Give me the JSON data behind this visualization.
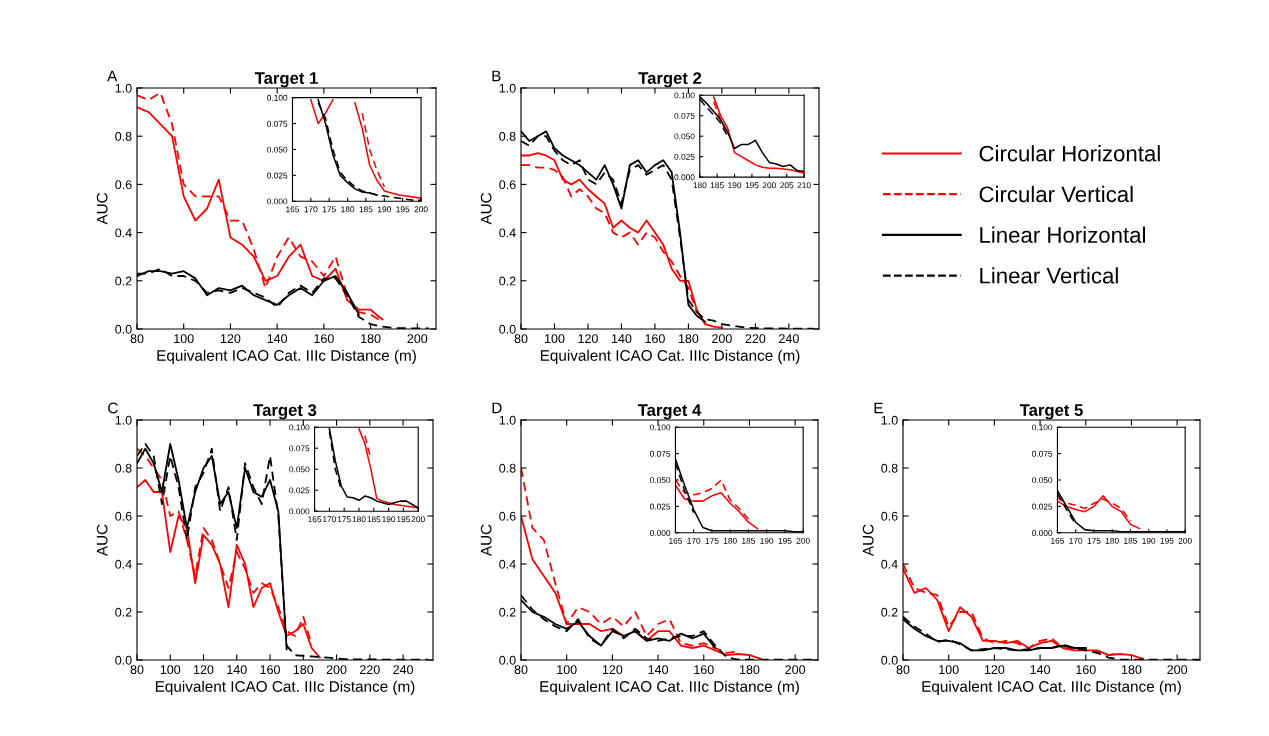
{
  "chart_data": [
    {
      "type": "line",
      "title": "Target 1",
      "annotations": [
        "A"
      ],
      "xlabel": "Equivalent ICAO Cat. IIIc Distance (m)",
      "ylabel": "AUC",
      "legend": "right",
      "xlim": [
        80,
        208
      ],
      "ylim": [
        0,
        1
      ],
      "xticks": [
        80,
        100,
        120,
        140,
        160,
        180,
        200
      ],
      "yticks": [
        {
          "value": 0,
          "label": "0.0"
        },
        {
          "value": 0.2,
          "label": "0.2"
        },
        {
          "value": 0.4,
          "label": "0.4"
        },
        {
          "value": 0.6,
          "label": "0.6"
        },
        {
          "value": 0.8,
          "label": "0.8"
        },
        {
          "value": 1,
          "label": "1.0"
        }
      ],
      "x": [
        80,
        85,
        90,
        95,
        100,
        105,
        110,
        115,
        120,
        125,
        130,
        135,
        140,
        145,
        150,
        155,
        160,
        165,
        170,
        175,
        180,
        185,
        190,
        195,
        200,
        205
      ],
      "series": [
        {
          "name": "Circular Horizontal",
          "color": "#ff0000",
          "line_style": "solid",
          "values": [
            0.92,
            0.9,
            0.85,
            0.8,
            0.55,
            0.45,
            0.5,
            0.62,
            0.38,
            0.35,
            0.3,
            0.2,
            0.22,
            0.3,
            0.35,
            0.22,
            0.2,
            0.25,
            0.12,
            0.08,
            0.08,
            0.04,
            null,
            null,
            null,
            null
          ]
        },
        {
          "name": "Circular Vertical",
          "color": "#ff0000",
          "line_style": "dashed",
          "values": [
            0.97,
            0.95,
            0.98,
            0.85,
            0.6,
            0.55,
            0.55,
            0.55,
            0.45,
            0.45,
            0.33,
            0.17,
            0.3,
            0.38,
            0.3,
            0.28,
            0.22,
            0.3,
            0.14,
            0.07,
            0.06,
            0.03,
            null,
            null,
            null,
            null
          ]
        },
        {
          "name": "Linear Horizontal",
          "color": "#000000",
          "line_style": "solid",
          "values": [
            0.22,
            0.24,
            0.24,
            0.23,
            0.24,
            0.21,
            0.14,
            0.17,
            0.16,
            0.18,
            0.14,
            0.12,
            0.1,
            0.14,
            0.17,
            0.14,
            0.2,
            0.22,
            0.15,
            0.06,
            null,
            null,
            null,
            null,
            null,
            null
          ]
        },
        {
          "name": "Linear Vertical",
          "color": "#000000",
          "line_style": "dashed",
          "values": [
            0.23,
            0.23,
            0.25,
            0.22,
            0.22,
            0.2,
            0.15,
            0.16,
            0.15,
            0.17,
            0.15,
            0.13,
            0.09,
            0.15,
            0.18,
            0.15,
            0.21,
            0.21,
            0.14,
            0.05,
            0.02,
            0.01,
            0.004,
            0.003,
            0.002,
            0.002
          ]
        }
      ]
    },
    {
      "type": "line",
      "xlim": [
        165,
        200
      ],
      "ylim": [
        0,
        0.1
      ],
      "xticks": [
        165,
        170,
        175,
        180,
        185,
        190,
        195,
        200
      ],
      "yticks": [
        {
          "value": 0,
          "label": "0.000"
        },
        {
          "value": 0.025,
          "label": "0.025"
        },
        {
          "value": 0.05,
          "label": "0.050"
        },
        {
          "value": 0.075,
          "label": "0.075"
        },
        {
          "value": 0.1,
          "label": "0.100"
        }
      ],
      "x": [
        170,
        172,
        174,
        176,
        178,
        180,
        182,
        184,
        186,
        188,
        190,
        192,
        194,
        196,
        198,
        200
      ],
      "series": [
        {
          "color": "#ff0000",
          "line_style": "solid",
          "values": [
            0.098,
            0.075,
            0.085,
            0.098,
            null,
            null,
            0.095,
            0.07,
            0.035,
            0.02,
            0.01,
            0.008,
            0.006,
            0.005,
            0.004,
            0.003
          ]
        },
        {
          "color": "#ff0000",
          "line_style": "dashed",
          "values": [
            null,
            null,
            null,
            null,
            null,
            null,
            null,
            0.085,
            0.05,
            0.03,
            0.014,
            null,
            null,
            null,
            null,
            null
          ]
        },
        {
          "color": "#000000",
          "line_style": "solid",
          "values": [
            null,
            0.098,
            0.075,
            0.045,
            0.025,
            0.018,
            0.012,
            0.009,
            0.008,
            0.006,
            null,
            null,
            null,
            null,
            null,
            null
          ]
        },
        {
          "color": "#000000",
          "line_style": "dashed",
          "values": [
            null,
            0.095,
            0.08,
            0.05,
            0.028,
            0.02,
            0.014,
            0.01,
            0.008,
            0.006,
            0.005,
            0.004,
            0.003,
            0.002,
            0.001,
            0.001
          ]
        }
      ]
    },
    {
      "type": "line",
      "title": "Target 2",
      "annotations": [
        "B"
      ],
      "xlabel": "Equivalent ICAO Cat. IIIc Distance (m)",
      "ylabel": "AUC",
      "xlim": [
        80,
        258
      ],
      "ylim": [
        0,
        1
      ],
      "xticks": [
        80,
        100,
        120,
        140,
        160,
        180,
        200,
        220,
        240
      ],
      "yticks": [
        {
          "value": 0,
          "label": "0.0"
        },
        {
          "value": 0.2,
          "label": "0.2"
        },
        {
          "value": 0.4,
          "label": "0.4"
        },
        {
          "value": 0.6,
          "label": "0.6"
        },
        {
          "value": 0.8,
          "label": "0.8"
        },
        {
          "value": 1,
          "label": "1.0"
        }
      ],
      "x": [
        80,
        85,
        90,
        95,
        100,
        105,
        110,
        115,
        120,
        125,
        130,
        135,
        140,
        145,
        150,
        155,
        160,
        165,
        170,
        175,
        180,
        185,
        190,
        195,
        200,
        205,
        210,
        215,
        220,
        225,
        230,
        235,
        240,
        245,
        250,
        255
      ],
      "series": [
        {
          "color": "#ff0000",
          "line_style": "solid",
          "values": [
            0.72,
            0.72,
            0.73,
            0.72,
            0.7,
            0.62,
            0.6,
            0.62,
            0.58,
            0.55,
            0.52,
            0.42,
            0.45,
            0.42,
            0.4,
            0.45,
            0.4,
            0.35,
            0.25,
            0.2,
            0.2,
            0.08,
            0.02,
            0.01,
            0.005,
            null,
            null,
            null,
            null,
            null,
            null,
            null,
            null,
            null,
            null,
            null
          ]
        },
        {
          "color": "#ff0000",
          "line_style": "dashed",
          "values": [
            0.68,
            0.68,
            0.67,
            0.67,
            0.66,
            0.63,
            0.55,
            0.58,
            0.55,
            0.5,
            0.48,
            0.4,
            0.38,
            0.4,
            0.35,
            0.4,
            0.38,
            0.32,
            0.28,
            0.22,
            0.17,
            0.07,
            null,
            null,
            null,
            null,
            null,
            null,
            null,
            null,
            null,
            null,
            null,
            null,
            null,
            null
          ]
        },
        {
          "color": "#000000",
          "line_style": "solid",
          "values": [
            0.82,
            0.78,
            0.8,
            0.82,
            0.75,
            0.72,
            0.7,
            0.68,
            0.65,
            0.62,
            0.68,
            0.6,
            0.5,
            0.68,
            0.7,
            0.65,
            0.68,
            0.7,
            0.65,
            0.4,
            0.1,
            0.055,
            0.03,
            null,
            null,
            null,
            null,
            null,
            null,
            null,
            null,
            null,
            null,
            null,
            null,
            null
          ]
        },
        {
          "color": "#000000",
          "line_style": "dashed",
          "values": [
            0.78,
            0.76,
            0.8,
            0.8,
            0.74,
            0.7,
            0.68,
            0.7,
            0.62,
            0.6,
            0.65,
            0.62,
            0.52,
            0.66,
            0.68,
            0.64,
            0.66,
            0.68,
            0.62,
            0.38,
            0.12,
            0.07,
            0.04,
            0.035,
            0.02,
            0.015,
            0.01,
            0.005,
            0.004,
            0.003,
            0.002,
            0.002,
            0.001,
            0.001,
            0.001,
            0.001
          ]
        }
      ]
    },
    {
      "type": "line",
      "xlim": [
        180,
        210
      ],
      "ylim": [
        0,
        0.1
      ],
      "xticks": [
        180,
        185,
        190,
        195,
        200,
        205,
        210
      ],
      "yticks": [
        {
          "value": 0,
          "label": "0.000"
        },
        {
          "value": 0.025,
          "label": "0.025"
        },
        {
          "value": 0.05,
          "label": "0.050"
        },
        {
          "value": 0.075,
          "label": "0.075"
        },
        {
          "value": 0.1,
          "label": "0.100"
        }
      ],
      "x": [
        180,
        182,
        184,
        186,
        188,
        190,
        192,
        194,
        196,
        198,
        200,
        202,
        204,
        206,
        208,
        210
      ],
      "series": [
        {
          "color": "#ff0000",
          "line_style": "solid",
          "values": [
            null,
            null,
            0.098,
            0.075,
            0.06,
            0.03,
            0.025,
            0.02,
            0.015,
            0.012,
            0.011,
            0.011,
            0.01,
            0.009,
            0.007,
            0.005
          ]
        },
        {
          "color": "#ff0000",
          "line_style": "dashed",
          "values": [
            null,
            null,
            0.092,
            0.07,
            0.052,
            null,
            null,
            null,
            null,
            null,
            null,
            null,
            null,
            null,
            null,
            null
          ]
        },
        {
          "color": "#000000",
          "line_style": "solid",
          "values": [
            0.098,
            0.09,
            0.08,
            0.07,
            0.055,
            0.035,
            0.04,
            0.04,
            0.045,
            0.03,
            0.018,
            0.016,
            0.013,
            0.015,
            0.008,
            0.007
          ]
        },
        {
          "color": "#000000",
          "line_style": "dashed",
          "values": [
            0.095,
            0.085,
            0.076,
            0.066,
            0.05,
            null,
            null,
            null,
            null,
            null,
            null,
            null,
            null,
            null,
            null,
            null
          ]
        }
      ]
    },
    {
      "type": "line",
      "title": "Target 3",
      "annotations": [
        "C"
      ],
      "xlabel": "Equivalent ICAO Cat. IIIc Distance (m)",
      "ylabel": "AUC",
      "xlim": [
        80,
        258
      ],
      "ylim": [
        0,
        1
      ],
      "xticks": [
        80,
        100,
        120,
        140,
        160,
        180,
        200,
        220,
        240
      ],
      "yticks": [
        {
          "value": 0,
          "label": "0.0"
        },
        {
          "value": 0.2,
          "label": "0.2"
        },
        {
          "value": 0.4,
          "label": "0.4"
        },
        {
          "value": 0.6,
          "label": "0.6"
        },
        {
          "value": 0.8,
          "label": "0.8"
        },
        {
          "value": 1,
          "label": "1.0"
        }
      ],
      "x": [
        80,
        85,
        90,
        95,
        100,
        105,
        110,
        115,
        120,
        125,
        130,
        135,
        140,
        145,
        150,
        155,
        160,
        165,
        170,
        175,
        180,
        185,
        190,
        195,
        200,
        205,
        210,
        215,
        220,
        225,
        230,
        235,
        240,
        245,
        250,
        255
      ],
      "series": [
        {
          "color": "#ff0000",
          "line_style": "solid",
          "values": [
            0.72,
            0.75,
            0.7,
            0.7,
            0.45,
            0.6,
            0.55,
            0.32,
            0.52,
            0.48,
            0.4,
            0.22,
            0.48,
            0.4,
            0.22,
            0.3,
            0.32,
            0.2,
            0.1,
            0.12,
            0.15,
            0.05,
            0.01,
            null,
            null,
            null,
            null,
            null,
            null,
            null,
            null,
            null,
            null,
            null,
            null,
            null
          ]
        },
        {
          "color": "#ff0000",
          "line_style": "dashed",
          "values": [
            0.88,
            0.85,
            0.8,
            0.75,
            0.6,
            0.62,
            0.5,
            0.35,
            0.55,
            0.5,
            0.4,
            0.3,
            0.45,
            0.38,
            0.28,
            0.32,
            0.3,
            0.22,
            0.12,
            0.1,
            0.18,
            0.065,
            null,
            null,
            null,
            null,
            null,
            null,
            null,
            null,
            null,
            null,
            null,
            null,
            null,
            null
          ]
        },
        {
          "color": "#000000",
          "line_style": "solid",
          "values": [
            0.82,
            0.88,
            0.82,
            0.7,
            0.9,
            0.75,
            0.55,
            0.7,
            0.8,
            0.85,
            0.65,
            0.7,
            0.55,
            0.8,
            0.7,
            0.68,
            0.75,
            0.62,
            0.045,
            null,
            null,
            null,
            null,
            null,
            null,
            null,
            null,
            null,
            null,
            null,
            null,
            null,
            null,
            null,
            null,
            null
          ]
        },
        {
          "color": "#000000",
          "line_style": "dashed",
          "values": [
            0.85,
            0.9,
            0.85,
            0.65,
            0.85,
            0.72,
            0.5,
            0.72,
            0.78,
            0.88,
            0.62,
            0.72,
            0.5,
            0.82,
            0.72,
            0.65,
            0.85,
            0.6,
            0.06,
            0.02,
            0.017,
            0.015,
            0.012,
            0.01,
            0.006,
            0.004,
            0.003,
            0.002,
            0.002,
            0.002,
            0.001,
            0.001,
            0.001,
            0.001,
            0.001,
            0.001
          ]
        }
      ]
    },
    {
      "type": "line",
      "xlim": [
        165,
        200
      ],
      "ylim": [
        0,
        0.1
      ],
      "xticks": [
        165,
        170,
        175,
        180,
        185,
        190,
        195,
        200
      ],
      "yticks": [
        {
          "value": 0,
          "label": "0.000"
        },
        {
          "value": 0.025,
          "label": "0.025"
        },
        {
          "value": 0.05,
          "label": "0.050"
        },
        {
          "value": 0.075,
          "label": "0.075"
        },
        {
          "value": 0.1,
          "label": "0.100"
        }
      ],
      "x": [
        170,
        172,
        174,
        176,
        178,
        180,
        182,
        184,
        186,
        188,
        190,
        192,
        194,
        196,
        198,
        200
      ],
      "series": [
        {
          "color": "#ff0000",
          "line_style": "solid",
          "values": [
            null,
            null,
            null,
            null,
            null,
            0.098,
            0.08,
            0.05,
            0.015,
            0.012,
            0.01,
            0.008,
            0.007,
            0.006,
            0.005,
            0.004
          ]
        },
        {
          "color": "#ff0000",
          "line_style": "dashed",
          "values": [
            null,
            null,
            null,
            null,
            null,
            null,
            0.09,
            0.062,
            null,
            null,
            null,
            null,
            null,
            null,
            null,
            null
          ]
        },
        {
          "color": "#000000",
          "line_style": "solid",
          "values": [
            0.098,
            0.06,
            0.03,
            0.017,
            0.016,
            0.013,
            0.018,
            0.016,
            0.012,
            0.01,
            0.008,
            0.01,
            0.012,
            0.012,
            0.008,
            0.004
          ]
        },
        {
          "color": "#000000",
          "line_style": "dashed",
          "values": [
            0.095,
            0.05,
            0.026,
            null,
            null,
            null,
            null,
            null,
            null,
            null,
            null,
            null,
            null,
            null,
            null,
            null
          ]
        }
      ]
    },
    {
      "type": "line",
      "title": "Target 4",
      "annotations": [
        "D"
      ],
      "xlabel": "Equivalent ICAO Cat. IIIc Distance (m)",
      "ylabel": "AUC",
      "xlim": [
        80,
        210
      ],
      "ylim": [
        0,
        1
      ],
      "xticks": [
        80,
        100,
        120,
        140,
        160,
        180,
        200
      ],
      "yticks": [
        {
          "value": 0,
          "label": "0.0"
        },
        {
          "value": 0.2,
          "label": "0.2"
        },
        {
          "value": 0.4,
          "label": "0.4"
        },
        {
          "value": 0.6,
          "label": "0.6"
        },
        {
          "value": 0.8,
          "label": "0.8"
        },
        {
          "value": 1,
          "label": "1.0"
        }
      ],
      "x": [
        80,
        85,
        90,
        95,
        100,
        105,
        110,
        115,
        120,
        125,
        130,
        135,
        140,
        145,
        150,
        155,
        160,
        165,
        170,
        175,
        180,
        185,
        190,
        195,
        200,
        205,
        210
      ],
      "series": [
        {
          "color": "#ff0000",
          "line_style": "solid",
          "values": [
            0.6,
            0.42,
            0.35,
            0.28,
            0.15,
            0.15,
            0.15,
            0.12,
            0.13,
            0.1,
            0.12,
            0.08,
            0.12,
            0.12,
            0.06,
            0.05,
            0.06,
            0.04,
            0.02,
            0.025,
            0.02,
            0.005,
            null,
            null,
            null,
            null,
            null
          ]
        },
        {
          "color": "#ff0000",
          "line_style": "dashed",
          "values": [
            0.8,
            0.55,
            0.5,
            0.32,
            0.15,
            0.22,
            0.2,
            0.15,
            0.18,
            0.14,
            0.2,
            0.1,
            0.15,
            0.17,
            0.07,
            0.06,
            0.07,
            0.05,
            0.03,
            0.035,
            null,
            null,
            null,
            null,
            null,
            null,
            null
          ]
        },
        {
          "color": "#000000",
          "line_style": "solid",
          "values": [
            0.25,
            0.2,
            0.18,
            0.15,
            0.13,
            0.16,
            0.1,
            0.06,
            0.12,
            0.1,
            0.12,
            0.08,
            0.09,
            0.08,
            0.11,
            0.09,
            0.11,
            0.05,
            null,
            null,
            null,
            null,
            null,
            null,
            null,
            null,
            null
          ]
        },
        {
          "color": "#000000",
          "line_style": "dashed",
          "values": [
            0.27,
            0.21,
            0.17,
            0.14,
            0.12,
            0.17,
            0.09,
            0.06,
            0.13,
            0.09,
            0.13,
            0.09,
            0.08,
            0.09,
            0.1,
            0.1,
            0.12,
            0.06,
            0.012,
            0.002,
            0.001,
            0.001,
            0.001,
            0.001,
            0.001,
            0.001,
            0.001
          ]
        }
      ]
    },
    {
      "type": "line",
      "xlim": [
        165,
        200
      ],
      "ylim": [
        0,
        0.1
      ],
      "xticks": [
        165,
        170,
        175,
        180,
        185,
        190,
        195,
        200
      ],
      "yticks": [
        {
          "value": 0,
          "label": "0.000"
        },
        {
          "value": 0.025,
          "label": "0.025"
        },
        {
          "value": 0.05,
          "label": "0.050"
        },
        {
          "value": 0.075,
          "label": "0.075"
        },
        {
          "value": 0.1,
          "label": "0.100"
        }
      ],
      "x": [
        165,
        167.5,
        170,
        172.5,
        175,
        177.5,
        180,
        182.5,
        185,
        187.5,
        190,
        192.5,
        195,
        197.5,
        200
      ],
      "series": [
        {
          "color": "#ff0000",
          "line_style": "solid",
          "values": [
            0.045,
            0.032,
            0.03,
            0.03,
            0.035,
            0.038,
            0.028,
            0.02,
            0.01,
            0.004,
            null,
            null,
            null,
            null,
            null
          ]
        },
        {
          "color": "#ff0000",
          "line_style": "dashed",
          "values": [
            0.05,
            0.038,
            0.036,
            0.038,
            0.042,
            0.05,
            0.031,
            0.023,
            0.013,
            null,
            null,
            null,
            null,
            null,
            null
          ]
        },
        {
          "color": "#000000",
          "line_style": "solid",
          "values": [
            0.07,
            0.045,
            0.022,
            0.005,
            0.002,
            0.002,
            0.002,
            0.002,
            0.002,
            0.002,
            0.002,
            0.002,
            0.002,
            0.001,
            0.001
          ]
        },
        {
          "color": "#000000",
          "line_style": "dashed",
          "values": [
            0.066,
            0.04,
            0.019,
            null,
            null,
            null,
            null,
            null,
            null,
            null,
            null,
            null,
            null,
            null,
            null
          ]
        }
      ]
    },
    {
      "type": "line",
      "title": "Target 5",
      "annotations": [
        "E"
      ],
      "xlabel": "Equivalent ICAO Cat. IIIc Distance (m)",
      "ylabel": "AUC",
      "xlim": [
        80,
        210
      ],
      "ylim": [
        0,
        1
      ],
      "xticks": [
        80,
        100,
        120,
        140,
        160,
        180,
        200
      ],
      "yticks": [
        {
          "value": 0,
          "label": "0.0"
        },
        {
          "value": 0.2,
          "label": "0.2"
        },
        {
          "value": 0.4,
          "label": "0.4"
        },
        {
          "value": 0.6,
          "label": "0.6"
        },
        {
          "value": 0.8,
          "label": "0.8"
        },
        {
          "value": 1,
          "label": "1.0"
        }
      ],
      "x": [
        80,
        85,
        90,
        95,
        100,
        105,
        110,
        115,
        120,
        125,
        130,
        135,
        140,
        145,
        150,
        155,
        160,
        165,
        170,
        175,
        180,
        185,
        190,
        195,
        200,
        205,
        210
      ],
      "series": [
        {
          "color": "#ff0000",
          "line_style": "solid",
          "values": [
            0.38,
            0.28,
            0.3,
            0.25,
            0.12,
            0.22,
            0.18,
            0.08,
            0.08,
            0.07,
            0.08,
            0.05,
            0.07,
            0.08,
            0.05,
            0.04,
            0.04,
            0.04,
            0.02,
            0.025,
            0.02,
            0.005,
            null,
            null,
            null,
            null,
            null
          ]
        },
        {
          "color": "#ff0000",
          "line_style": "dashed",
          "values": [
            0.4,
            0.3,
            0.28,
            0.27,
            0.14,
            0.2,
            0.2,
            0.09,
            0.07,
            0.08,
            0.07,
            0.05,
            0.08,
            0.09,
            0.05,
            0.045,
            0.045,
            0.035,
            0.02,
            0.03,
            null,
            null,
            null,
            null,
            null,
            null,
            null
          ]
        },
        {
          "color": "#000000",
          "line_style": "solid",
          "values": [
            0.17,
            0.13,
            0.1,
            0.08,
            0.08,
            0.07,
            0.04,
            0.04,
            0.05,
            0.05,
            0.04,
            0.04,
            0.05,
            0.05,
            0.06,
            0.05,
            0.05,
            null,
            null,
            null,
            null,
            null,
            null,
            null,
            null,
            null,
            null
          ]
        },
        {
          "color": "#000000",
          "line_style": "dashed",
          "values": [
            0.18,
            0.14,
            0.11,
            0.075,
            0.085,
            0.065,
            0.04,
            0.045,
            0.05,
            0.045,
            0.04,
            0.045,
            0.05,
            0.05,
            0.065,
            0.05,
            0.04,
            0.03,
            0.01,
            0.001,
            0.001,
            0.001,
            0.001,
            0.001,
            0.001,
            0.001,
            0.001
          ]
        }
      ]
    },
    {
      "type": "line",
      "xlim": [
        165,
        200
      ],
      "ylim": [
        0,
        0.1
      ],
      "xticks": [
        165,
        170,
        175,
        180,
        185,
        190,
        195,
        200
      ],
      "yticks": [
        {
          "value": 0,
          "label": "0.000"
        },
        {
          "value": 0.025,
          "label": "0.025"
        },
        {
          "value": 0.05,
          "label": "0.050"
        },
        {
          "value": 0.075,
          "label": "0.075"
        },
        {
          "value": 0.1,
          "label": "0.100"
        }
      ],
      "x": [
        165,
        167.5,
        170,
        172.5,
        175,
        177.5,
        180,
        182.5,
        185,
        187.5,
        190,
        192.5,
        195,
        197.5,
        200
      ],
      "series": [
        {
          "color": "#ff0000",
          "line_style": "solid",
          "values": [
            0.03,
            0.025,
            0.022,
            0.02,
            0.025,
            0.035,
            0.025,
            0.02,
            0.008,
            0.004,
            null,
            null,
            null,
            null,
            null
          ]
        },
        {
          "color": "#ff0000",
          "line_style": "dashed",
          "values": [
            0.033,
            0.028,
            0.026,
            0.023,
            0.028,
            0.032,
            0.028,
            0.023,
            0.011,
            null,
            null,
            null,
            null,
            null,
            null
          ]
        },
        {
          "color": "#000000",
          "line_style": "solid",
          "values": [
            0.04,
            0.025,
            0.01,
            0.003,
            0.002,
            0.002,
            0.002,
            0.001,
            0.001,
            0.001,
            0.001,
            0.001,
            0.001,
            0.001,
            0.001
          ]
        },
        {
          "color": "#000000",
          "line_style": "dashed",
          "values": [
            0.037,
            0.022,
            0.008,
            null,
            null,
            null,
            null,
            null,
            null,
            null,
            null,
            null,
            null,
            null,
            null
          ]
        }
      ]
    }
  ]
}
